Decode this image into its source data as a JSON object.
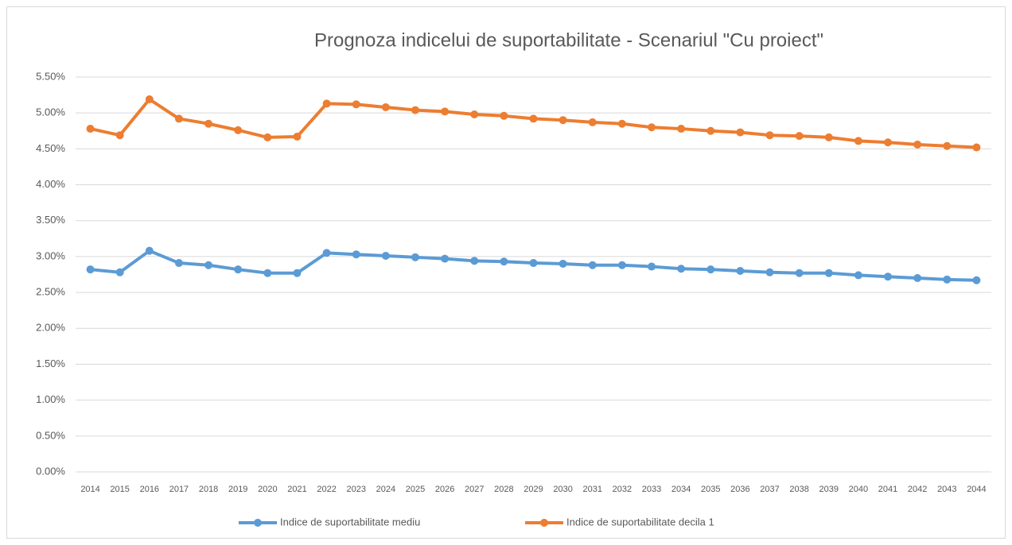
{
  "chart_data": {
    "type": "line",
    "title": "Prognoza indicelui de suportabilitate - Scenariul \"Cu proiect\"",
    "categories": [
      "2014",
      "2015",
      "2016",
      "2017",
      "2018",
      "2019",
      "2020",
      "2021",
      "2022",
      "2023",
      "2024",
      "2025",
      "2026",
      "2027",
      "2028",
      "2029",
      "2030",
      "2031",
      "2032",
      "2033",
      "2034",
      "2035",
      "2036",
      "2037",
      "2038",
      "2039",
      "2040",
      "2041",
      "2042",
      "2043",
      "2044"
    ],
    "series": [
      {
        "name": "Indice de suportabilitate mediu",
        "color": "#5b9bd5",
        "values": [
          2.82,
          2.78,
          3.08,
          2.91,
          2.88,
          2.82,
          2.77,
          2.77,
          3.05,
          3.03,
          3.01,
          2.99,
          2.97,
          2.94,
          2.93,
          2.91,
          2.9,
          2.88,
          2.88,
          2.86,
          2.83,
          2.82,
          2.8,
          2.78,
          2.77,
          2.77,
          2.74,
          2.72,
          2.7,
          2.68,
          2.67
        ]
      },
      {
        "name": "Indice de suportabilitate decila 1",
        "color": "#ed7d31",
        "values": [
          4.78,
          4.69,
          5.19,
          4.92,
          4.85,
          4.76,
          4.66,
          4.67,
          5.13,
          5.12,
          5.08,
          5.04,
          5.02,
          4.98,
          4.96,
          4.92,
          4.9,
          4.87,
          4.85,
          4.8,
          4.78,
          4.75,
          4.73,
          4.69,
          4.68,
          4.66,
          4.61,
          4.59,
          4.56,
          4.54,
          4.52
        ]
      }
    ],
    "ylim": [
      0,
      5.5
    ],
    "yticks": [
      {
        "value": 0,
        "label": "0.00%"
      },
      {
        "value": 0.5,
        "label": "0.50%"
      },
      {
        "value": 1,
        "label": "1.00%"
      },
      {
        "value": 1.5,
        "label": "1.50%"
      },
      {
        "value": 2,
        "label": "2.00%"
      },
      {
        "value": 2.5,
        "label": "2.50%"
      },
      {
        "value": 3,
        "label": "3.00%"
      },
      {
        "value": 3.5,
        "label": "3.50%"
      },
      {
        "value": 4,
        "label": "4.00%"
      },
      {
        "value": 4.5,
        "label": "4.50%"
      },
      {
        "value": 5,
        "label": "5.00%"
      },
      {
        "value": 5.5,
        "label": "5.50%"
      }
    ],
    "grid": true,
    "legend": "bottom"
  }
}
